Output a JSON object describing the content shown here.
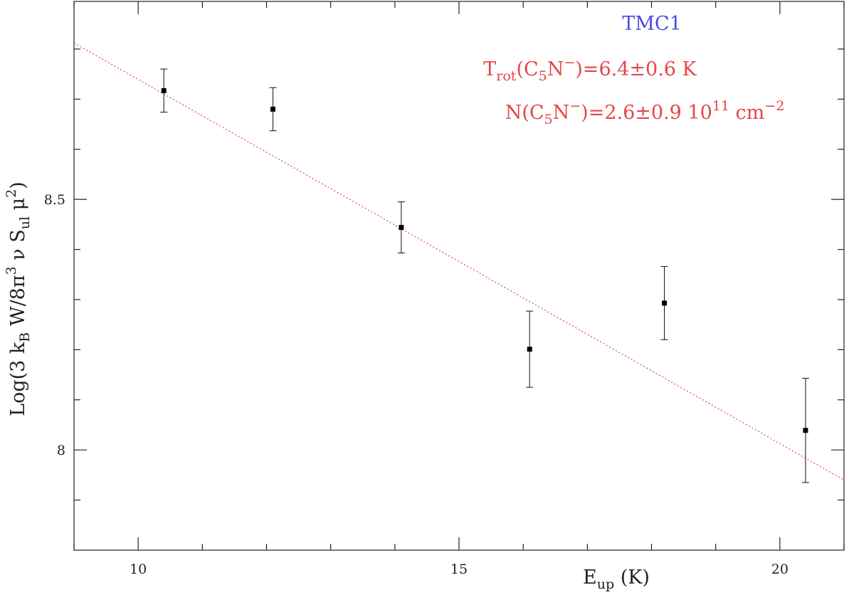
{
  "chart_data": {
    "type": "scatter",
    "xlabel": {
      "main": "E",
      "sub": "up",
      "unit": " (K)"
    },
    "ylabel": {
      "prefix": "Log(3 k",
      "sub_kb": "B",
      "mid": " W/8π",
      "sup3": "3",
      "mid2": " ν S",
      "sub_ul": "ul",
      "mid3": " μ",
      "sup2": "2",
      "suffix": ")"
    },
    "xlim": [
      9.0,
      21.0
    ],
    "ylim": [
      7.8,
      8.895
    ],
    "x_ticks": {
      "major": [
        10,
        15,
        20
      ],
      "major_labels": [
        "10",
        "15",
        "20"
      ],
      "minor": [
        9,
        11,
        12,
        13,
        14,
        16,
        17,
        18,
        19,
        21
      ]
    },
    "y_ticks": {
      "major": [
        8.0,
        8.5
      ],
      "major_labels": [
        "8",
        "8.5"
      ],
      "minor": [
        7.9,
        8.1,
        8.2,
        8.3,
        8.4,
        8.6,
        8.7,
        8.8
      ]
    },
    "points": [
      {
        "x": 10.4,
        "y": 8.717,
        "err": 0.043
      },
      {
        "x": 12.1,
        "y": 8.68,
        "err": 0.043
      },
      {
        "x": 14.1,
        "y": 8.444,
        "err": 0.051
      },
      {
        "x": 16.1,
        "y": 8.201,
        "err": 0.076
      },
      {
        "x": 18.2,
        "y": 8.293,
        "err": 0.073
      },
      {
        "x": 20.4,
        "y": 8.039,
        "err": 0.104
      }
    ],
    "fit_line": {
      "x": [
        9.0,
        21.0
      ],
      "y": [
        8.812,
        7.94
      ],
      "color": "#e64545",
      "style": "dotted"
    },
    "annotations": {
      "source": {
        "text": "TMC1",
        "color": "#4a4ae6"
      },
      "trot": {
        "t1": "T",
        "t1_sub": "rot",
        "t2": "(C",
        "t2_sub": "5",
        "t3": "N",
        "t3_sup": "−",
        "t4": ")=6.4±0.6 K",
        "color": "#e64545"
      },
      "ncol": {
        "t1": "N(C",
        "t1_sub": "5",
        "t2": "N",
        "t2_sup": "−",
        "t3": ")=2.6±0.9 10",
        "t3_sup": "11",
        "t4": " cm",
        "t4_sup": "−2",
        "color": "#e64545"
      }
    }
  }
}
